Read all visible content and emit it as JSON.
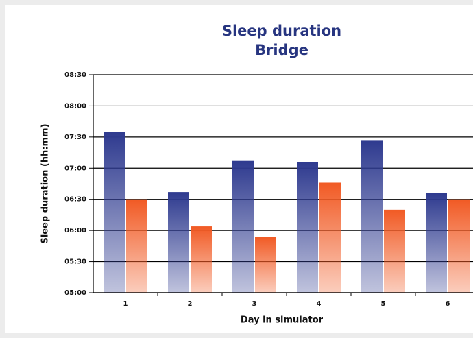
{
  "chart_data": {
    "type": "bar",
    "title": "Sleep duration",
    "subtitle": "Bridge",
    "x_label": "Day in simulator",
    "y_label": "Sleep duration (hh:mm)",
    "categories": [
      "1",
      "2",
      "3",
      "4",
      "5",
      "6"
    ],
    "series": [
      {
        "color": "#2e3a8f",
        "values": [
          455,
          397,
          427,
          426,
          447,
          396
        ]
      },
      {
        "color": "#f15a24",
        "values": [
          390,
          364,
          354,
          406,
          380,
          390
        ]
      }
    ],
    "ylim": [
      300,
      510
    ],
    "yticks": [
      {
        "value": 300,
        "label": "05:00"
      },
      {
        "value": 330,
        "label": "05:30"
      },
      {
        "value": 360,
        "label": "06:00"
      },
      {
        "value": 390,
        "label": "06:30"
      },
      {
        "value": 420,
        "label": "07:00"
      },
      {
        "value": 450,
        "label": "07:30"
      },
      {
        "value": 480,
        "label": "08:00"
      },
      {
        "value": 510,
        "label": "08:30"
      }
    ],
    "grid": true
  }
}
